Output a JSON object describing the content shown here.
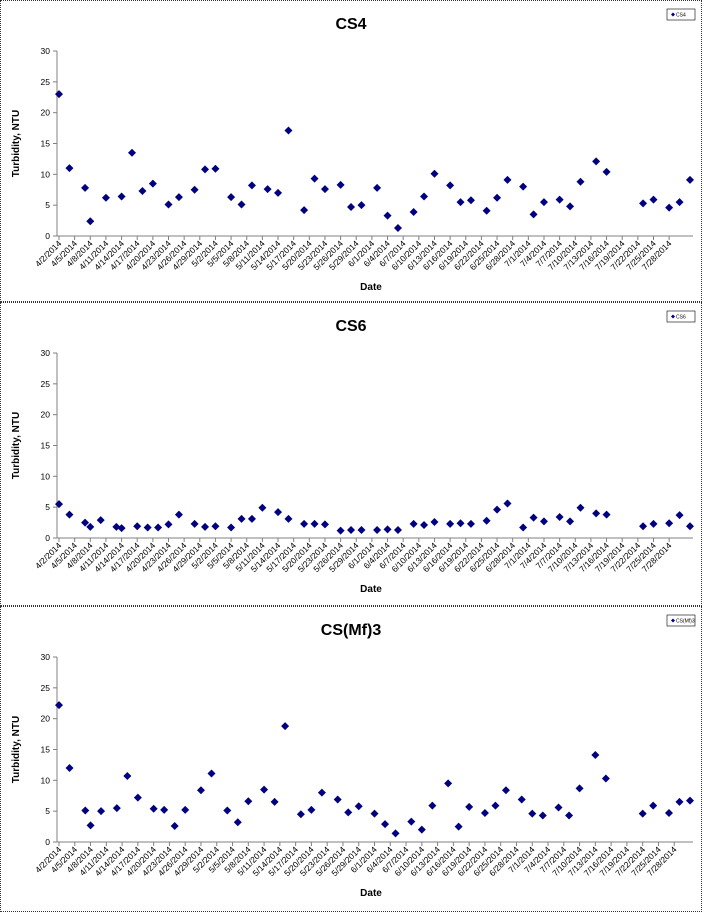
{
  "chart_data": [
    {
      "type": "scatter",
      "title": "CS4",
      "xlabel": "Date",
      "ylabel": "Turbidity, NTU",
      "ylim": [
        0,
        30
      ],
      "yticks": [
        0,
        5,
        10,
        15,
        20,
        25,
        30
      ],
      "legend": "top-right",
      "series": [
        {
          "name": "CS4",
          "color": "#000080",
          "marker": "diamond"
        }
      ],
      "x_tick_labels": [
        "4/2/2014",
        "4/5/2014",
        "4/8/2014",
        "4/11/2014",
        "4/14/2014",
        "4/17/2014",
        "4/20/2014",
        "4/23/2014",
        "4/26/2014",
        "4/29/2014",
        "5/2/2014",
        "5/5/2014",
        "5/8/2014",
        "5/11/2014",
        "5/14/2014",
        "5/17/2014",
        "5/20/2014",
        "5/23/2014",
        "5/26/2014",
        "5/29/2014",
        "6/1/2014",
        "6/4/2014",
        "6/7/2014",
        "6/10/2014",
        "6/13/2014",
        "6/16/2014",
        "6/19/2014",
        "6/22/2014",
        "6/25/2014",
        "6/28/2014",
        "7/1/2014",
        "7/4/2014",
        "7/7/2014",
        "7/10/2014",
        "7/13/2014",
        "7/16/2014",
        "7/19/2014",
        "7/22/2014",
        "7/25/2014",
        "7/28/2014"
      ],
      "x": [
        "4/2/2014",
        "4/4/2014",
        "4/7/2014",
        "4/8/2014",
        "4/11/2014",
        "4/14/2014",
        "4/16/2014",
        "4/18/2014",
        "4/20/2014",
        "4/23/2014",
        "4/25/2014",
        "4/28/2014",
        "4/30/2014",
        "5/2/2014",
        "5/5/2014",
        "5/7/2014",
        "5/9/2014",
        "5/12/2014",
        "5/14/2014",
        "5/16/2014",
        "5/19/2014",
        "5/21/2014",
        "5/23/2014",
        "5/26/2014",
        "5/28/2014",
        "5/30/2014",
        "6/2/2014",
        "6/4/2014",
        "6/6/2014",
        "6/9/2014",
        "6/11/2014",
        "6/13/2014",
        "6/16/2014",
        "6/18/2014",
        "6/20/2014",
        "6/23/2014",
        "6/25/2014",
        "6/27/2014",
        "6/30/2014",
        "7/2/2014",
        "7/4/2014",
        "7/7/2014",
        "7/9/2014",
        "7/11/2014",
        "7/14/2014",
        "7/16/2014",
        "7/23/2014",
        "7/25/2014",
        "7/28/2014",
        "7/30/2014",
        "8/1/2014"
      ],
      "y": [
        23.0,
        11.0,
        7.8,
        2.4,
        6.2,
        6.4,
        13.5,
        7.3,
        8.5,
        5.1,
        6.3,
        7.5,
        10.8,
        10.9,
        6.3,
        5.1,
        8.2,
        7.6,
        7.0,
        17.1,
        4.2,
        9.3,
        7.6,
        8.3,
        4.7,
        5.0,
        7.8,
        3.3,
        1.3,
        3.9,
        6.4,
        10.1,
        8.2,
        5.5,
        5.8,
        4.1,
        6.2,
        9.1,
        8.0,
        3.5,
        5.5,
        5.9,
        4.8,
        8.8,
        12.1,
        10.4,
        5.3,
        5.9,
        4.6,
        5.5,
        9.1
      ]
    },
    {
      "type": "scatter",
      "title": "CS6",
      "xlabel": "Date",
      "ylabel": "Turbidity, NTU",
      "ylim": [
        0,
        30
      ],
      "yticks": [
        0,
        5,
        10,
        15,
        20,
        25,
        30
      ],
      "legend": "top-right",
      "series": [
        {
          "name": "CS6",
          "color": "#000080",
          "marker": "diamond"
        }
      ],
      "x_tick_labels": [
        "4/2/2014",
        "4/5/2014",
        "4/8/2014",
        "4/11/2014",
        "4/14/2014",
        "4/17/2014",
        "4/20/2014",
        "4/23/2014",
        "4/26/2014",
        "4/29/2014",
        "5/2/2014",
        "5/5/2014",
        "5/8/2014",
        "5/11/2014",
        "5/14/2014",
        "5/17/2014",
        "5/20/2014",
        "5/23/2014",
        "5/26/2014",
        "5/29/2014",
        "6/1/2014",
        "6/4/2014",
        "6/7/2014",
        "6/10/2014",
        "6/13/2014",
        "6/16/2014",
        "6/19/2014",
        "6/22/2014",
        "6/25/2014",
        "6/28/2014",
        "7/1/2014",
        "7/4/2014",
        "7/7/2014",
        "7/10/2014",
        "7/13/2014",
        "7/16/2014",
        "7/19/2014",
        "7/22/2014",
        "7/25/2014",
        "7/28/2014"
      ],
      "x": [
        "4/2/2014",
        "4/4/2014",
        "4/7/2014",
        "4/8/2014",
        "4/10/2014",
        "4/13/2014",
        "4/14/2014",
        "4/17/2014",
        "4/19/2014",
        "4/21/2014",
        "4/23/2014",
        "4/25/2014",
        "4/28/2014",
        "4/30/2014",
        "5/2/2014",
        "5/5/2014",
        "5/7/2014",
        "5/9/2014",
        "5/11/2014",
        "5/14/2014",
        "5/16/2014",
        "5/19/2014",
        "5/21/2014",
        "5/23/2014",
        "5/26/2014",
        "5/28/2014",
        "5/30/2014",
        "6/2/2014",
        "6/4/2014",
        "6/6/2014",
        "6/9/2014",
        "6/11/2014",
        "6/13/2014",
        "6/16/2014",
        "6/18/2014",
        "6/20/2014",
        "6/23/2014",
        "6/25/2014",
        "6/27/2014",
        "6/30/2014",
        "7/2/2014",
        "7/4/2014",
        "7/7/2014",
        "7/9/2014",
        "7/11/2014",
        "7/14/2014",
        "7/16/2014",
        "7/23/2014",
        "7/25/2014",
        "7/28/2014",
        "7/30/2014",
        "8/1/2014"
      ],
      "y": [
        5.5,
        3.8,
        2.5,
        1.8,
        2.9,
        1.8,
        1.6,
        1.9,
        1.7,
        1.7,
        2.2,
        3.8,
        2.3,
        1.8,
        1.9,
        1.7,
        3.1,
        3.1,
        4.9,
        4.2,
        3.1,
        2.3,
        2.3,
        2.2,
        1.2,
        1.3,
        1.3,
        1.3,
        1.4,
        1.3,
        2.3,
        2.1,
        2.6,
        2.3,
        2.4,
        2.3,
        2.8,
        4.6,
        5.6,
        1.7,
        3.3,
        2.7,
        3.4,
        2.7,
        4.9,
        4.0,
        3.8,
        1.9,
        2.3,
        2.4,
        3.7,
        1.9
      ]
    },
    {
      "type": "scatter",
      "title": "CS(Mf)3",
      "xlabel": "Date",
      "ylabel": "Turbidity, NTU",
      "ylim": [
        0,
        30
      ],
      "yticks": [
        0,
        5,
        10,
        15,
        20,
        25,
        30
      ],
      "legend": "top-right",
      "series": [
        {
          "name": "CS(Mf)3",
          "color": "#000080",
          "marker": "diamond"
        }
      ],
      "x_tick_labels": [
        "4/2/2014",
        "4/5/2014",
        "4/8/2014",
        "4/11/2014",
        "4/14/2014",
        "4/17/2014",
        "4/20/2014",
        "4/23/2014",
        "4/26/2014",
        "4/29/2014",
        "5/2/2014",
        "5/5/2014",
        "5/8/2014",
        "5/11/2014",
        "5/14/2014",
        "5/17/2014",
        "5/20/2014",
        "5/23/2014",
        "5/26/2014",
        "5/29/2014",
        "6/1/2014",
        "6/4/2014",
        "6/7/2014",
        "6/10/2014",
        "6/13/2014",
        "6/16/2014",
        "6/19/2014",
        "6/22/2014",
        "6/25/2014",
        "6/28/2014",
        "7/1/2014",
        "7/4/2014",
        "7/7/2014",
        "7/10/2014",
        "7/13/2014",
        "7/16/2014",
        "7/19/2014",
        "7/22/2014",
        "7/25/2014",
        "7/28/2014"
      ],
      "x": [
        "4/2/2014",
        "4/4/2014",
        "4/7/2014",
        "4/8/2014",
        "4/10/2014",
        "4/13/2014",
        "4/15/2014",
        "4/17/2014",
        "4/20/2014",
        "4/22/2014",
        "4/24/2014",
        "4/26/2014",
        "4/29/2014",
        "5/1/2014",
        "5/4/2014",
        "5/6/2014",
        "5/8/2014",
        "5/11/2014",
        "5/13/2014",
        "5/15/2014",
        "5/18/2014",
        "5/20/2014",
        "5/22/2014",
        "5/25/2014",
        "5/27/2014",
        "5/29/2014",
        "6/1/2014",
        "6/3/2014",
        "6/5/2014",
        "6/8/2014",
        "6/10/2014",
        "6/12/2014",
        "6/15/2014",
        "6/17/2014",
        "6/19/2014",
        "6/22/2014",
        "6/24/2014",
        "6/26/2014",
        "6/29/2014",
        "7/1/2014",
        "7/3/2014",
        "7/6/2014",
        "7/8/2014",
        "7/10/2014",
        "7/13/2014",
        "7/15/2014",
        "7/22/2014",
        "7/24/2014",
        "7/27/2014",
        "7/29/2014",
        "7/31/2014"
      ],
      "y": [
        22.2,
        12.0,
        5.1,
        2.7,
        5.0,
        5.5,
        10.7,
        7.2,
        5.4,
        5.2,
        2.6,
        5.2,
        8.4,
        11.1,
        5.1,
        3.2,
        6.6,
        8.5,
        6.5,
        18.8,
        4.5,
        5.2,
        8.0,
        6.9,
        4.8,
        5.8,
        4.6,
        2.9,
        1.4,
        3.3,
        2.0,
        5.9,
        9.5,
        2.5,
        5.7,
        4.7,
        5.9,
        8.4,
        6.9,
        4.6,
        4.3,
        5.6,
        4.3,
        8.7,
        14.1,
        10.3,
        4.6,
        5.9,
        4.7,
        6.5,
        6.7
      ]
    }
  ]
}
